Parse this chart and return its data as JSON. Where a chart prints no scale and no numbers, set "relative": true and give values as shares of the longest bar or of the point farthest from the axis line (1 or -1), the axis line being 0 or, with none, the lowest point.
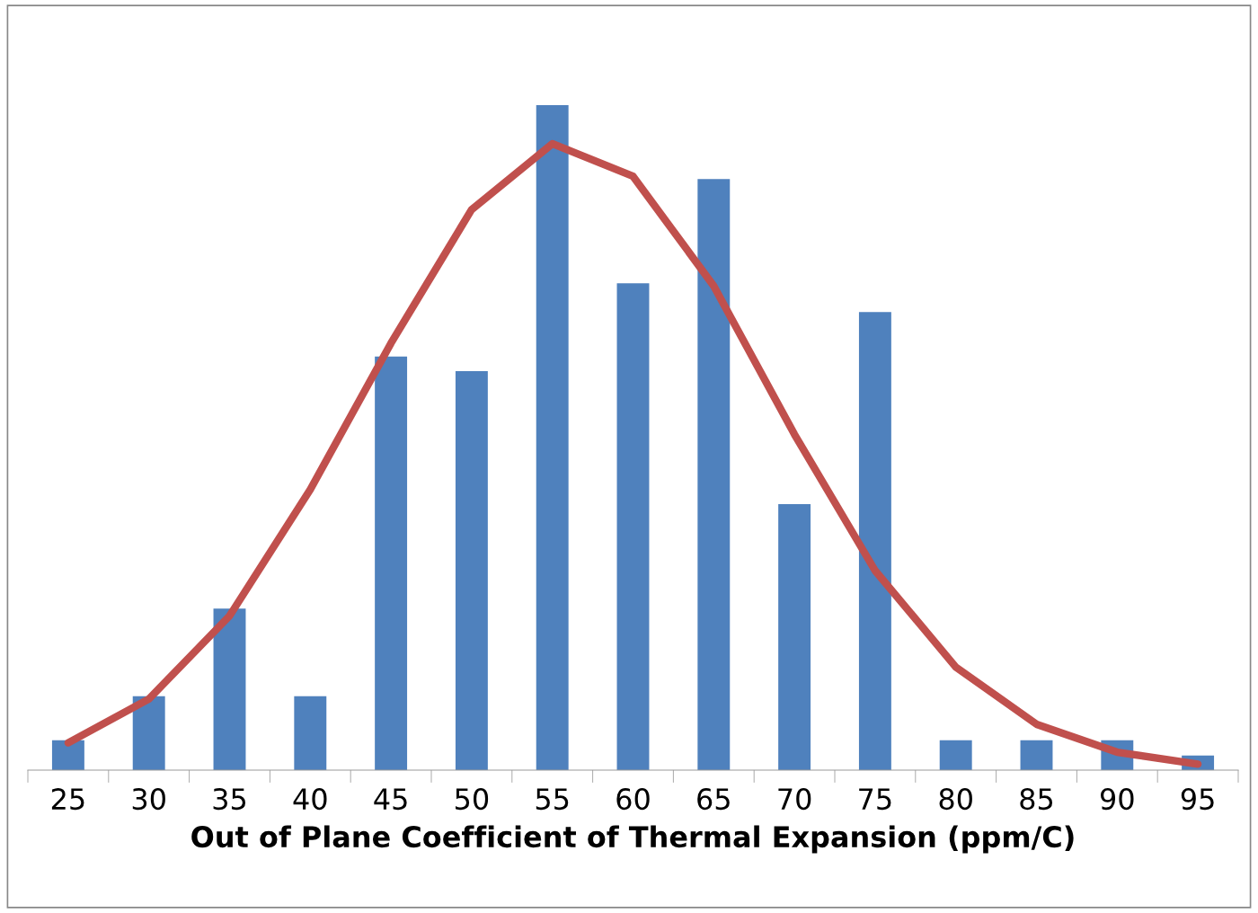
{
  "chart_data": {
    "type": "bar",
    "relative": true,
    "xlabel": "Out of Plane Coefficient of Thermal Expansion (ppm/C)",
    "categories": [
      "25",
      "30",
      "35",
      "40",
      "45",
      "50",
      "55",
      "60",
      "65",
      "70",
      "75",
      "80",
      "85",
      "90",
      "95"
    ],
    "series": [
      {
        "color": "#4f81bd",
        "values": [
          0.045,
          0.111,
          0.243,
          0.111,
          0.622,
          0.6,
          1.0,
          0.732,
          0.889,
          0.4,
          0.689,
          0.045,
          0.045,
          0.045,
          0.022
        ]
      },
      {
        "type": "line",
        "color": "#c0504d",
        "values": [
          0.041,
          0.107,
          0.232,
          0.422,
          0.642,
          0.843,
          0.942,
          0.893,
          0.728,
          0.505,
          0.3,
          0.155,
          0.069,
          0.027,
          0.009
        ]
      }
    ],
    "grid": false,
    "legend": false
  }
}
